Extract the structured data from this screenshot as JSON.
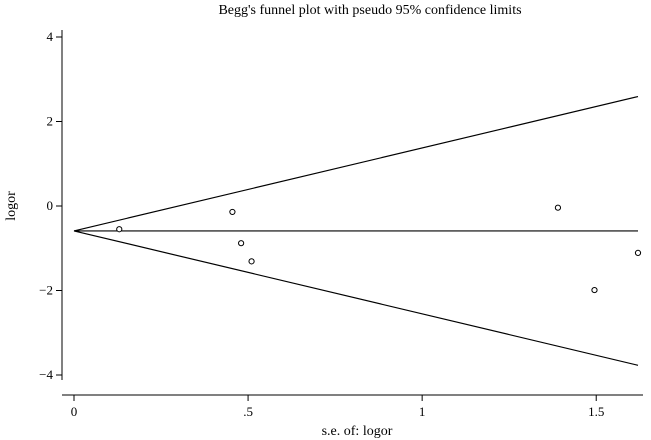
{
  "chart_data": {
    "type": "scatter",
    "title": "Begg's funnel plot with pseudo 95% confidence limits",
    "xlabel": "s.e. of: logor",
    "ylabel": "logor",
    "xlim": [
      0,
      1.62
    ],
    "ylim": [
      -4,
      4
    ],
    "x_ticks": [
      {
        "value": 0,
        "label": "0"
      },
      {
        "value": 0.5,
        "label": ".5"
      },
      {
        "value": 1,
        "label": "1"
      },
      {
        "value": 1.5,
        "label": "1.5"
      }
    ],
    "y_ticks": [
      {
        "value": -4,
        "label": "−4"
      },
      {
        "value": -2,
        "label": "−2"
      },
      {
        "value": 0,
        "label": "0"
      },
      {
        "value": 2,
        "label": "2"
      },
      {
        "value": 4,
        "label": "4"
      }
    ],
    "pooled_estimate": -0.59,
    "confidence_limits": {
      "upper": [
        [
          0,
          -0.59
        ],
        [
          1.62,
          2.59
        ]
      ],
      "lower": [
        [
          0,
          -0.59
        ],
        [
          1.62,
          -3.77
        ]
      ]
    },
    "points": [
      {
        "x": 0.13,
        "y": -0.55
      },
      {
        "x": 0.455,
        "y": -0.14
      },
      {
        "x": 0.48,
        "y": -0.88
      },
      {
        "x": 0.51,
        "y": -1.31
      },
      {
        "x": 1.39,
        "y": -0.04
      },
      {
        "x": 1.495,
        "y": -1.99
      },
      {
        "x": 1.62,
        "y": -1.11
      }
    ],
    "grid": false,
    "legend": "none"
  }
}
